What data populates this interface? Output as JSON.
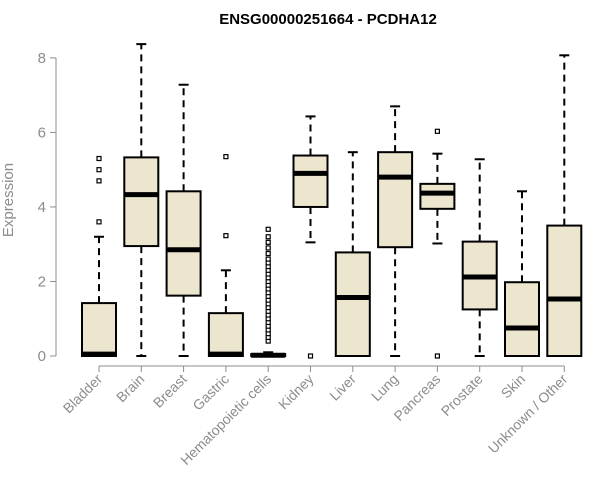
{
  "chart_data": {
    "type": "boxplot",
    "title": "ENSG00000251664 - PCDHA12",
    "xlabel": "",
    "ylabel": "Expression",
    "ylim": [
      0,
      8.4
    ],
    "yticks": [
      0,
      2,
      4,
      6,
      8
    ],
    "colors": {
      "box_fill": "#ede6cf",
      "box_stroke": "#000000",
      "axis": "#8c8c8c"
    },
    "categories": [
      "Bladder",
      "Brain",
      "Breast",
      "Gastric",
      "Hematopoietic cells",
      "Kidney",
      "Liver",
      "Lung",
      "Pancreas",
      "Prostate",
      "Skin",
      "Unknown / Other"
    ],
    "boxes": [
      {
        "name": "Bladder",
        "min": 0,
        "q1": 0,
        "median": 0.05,
        "q3": 1.42,
        "max": 3.2,
        "outliers": [
          3.6,
          4.7,
          5.0,
          5.3
        ]
      },
      {
        "name": "Brain",
        "min": 0,
        "q1": 2.95,
        "median": 4.33,
        "q3": 5.33,
        "max": 8.37,
        "outliers": []
      },
      {
        "name": "Breast",
        "min": 0,
        "q1": 1.62,
        "median": 2.85,
        "q3": 4.42,
        "max": 7.28,
        "outliers": []
      },
      {
        "name": "Gastric",
        "min": 0,
        "q1": 0,
        "median": 0.05,
        "q3": 1.15,
        "max": 2.3,
        "outliers": [
          3.23,
          5.35
        ]
      },
      {
        "name": "Hematopoietic cells",
        "min": 0,
        "q1": 0,
        "median": 0.02,
        "q3": 0.05,
        "max": 0.1,
        "outliers": [
          0.4,
          0.5,
          0.6,
          0.7,
          0.8,
          0.9,
          1.0,
          1.1,
          1.2,
          1.3,
          1.4,
          1.5,
          1.6,
          1.7,
          1.8,
          1.9,
          2.0,
          2.1,
          2.2,
          2.3,
          2.4,
          2.5,
          2.6,
          2.75,
          2.9,
          3.05,
          3.2,
          3.4
        ]
      },
      {
        "name": "Kidney",
        "min": 3.05,
        "q1": 4.0,
        "median": 4.9,
        "q3": 5.38,
        "max": 6.43,
        "outliers": [
          0
        ]
      },
      {
        "name": "Liver",
        "min": 0,
        "q1": 0,
        "median": 1.57,
        "q3": 2.78,
        "max": 5.47,
        "outliers": []
      },
      {
        "name": "Lung",
        "min": 0,
        "q1": 2.92,
        "median": 4.8,
        "q3": 5.47,
        "max": 6.7,
        "outliers": []
      },
      {
        "name": "Pancreas",
        "min": 3.02,
        "q1": 3.95,
        "median": 4.37,
        "q3": 4.62,
        "max": 5.43,
        "outliers": [
          0,
          6.03
        ]
      },
      {
        "name": "Prostate",
        "min": 0,
        "q1": 1.25,
        "median": 2.12,
        "q3": 3.07,
        "max": 5.28,
        "outliers": []
      },
      {
        "name": "Skin",
        "min": 0,
        "q1": 0,
        "median": 0.75,
        "q3": 1.98,
        "max": 4.42,
        "outliers": []
      },
      {
        "name": "Unknown / Other",
        "min": 0,
        "q1": 0,
        "median": 1.53,
        "q3": 3.5,
        "max": 8.07,
        "outliers": []
      }
    ]
  }
}
